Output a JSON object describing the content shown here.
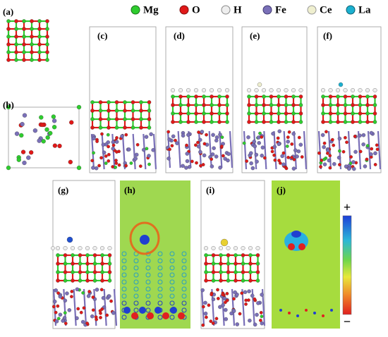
{
  "legend": [
    "Mg",
    "O",
    "H",
    "Fe",
    "Ce",
    "La"
  ],
  "panels": [
    "(a)",
    "(b)",
    "(c)",
    "(d)",
    "(e)",
    "(f)",
    "(g)",
    "(h)",
    "(i)",
    "(j)"
  ],
  "colorbar": {
    "top_label": "+",
    "bottom_label": "−"
  }
}
